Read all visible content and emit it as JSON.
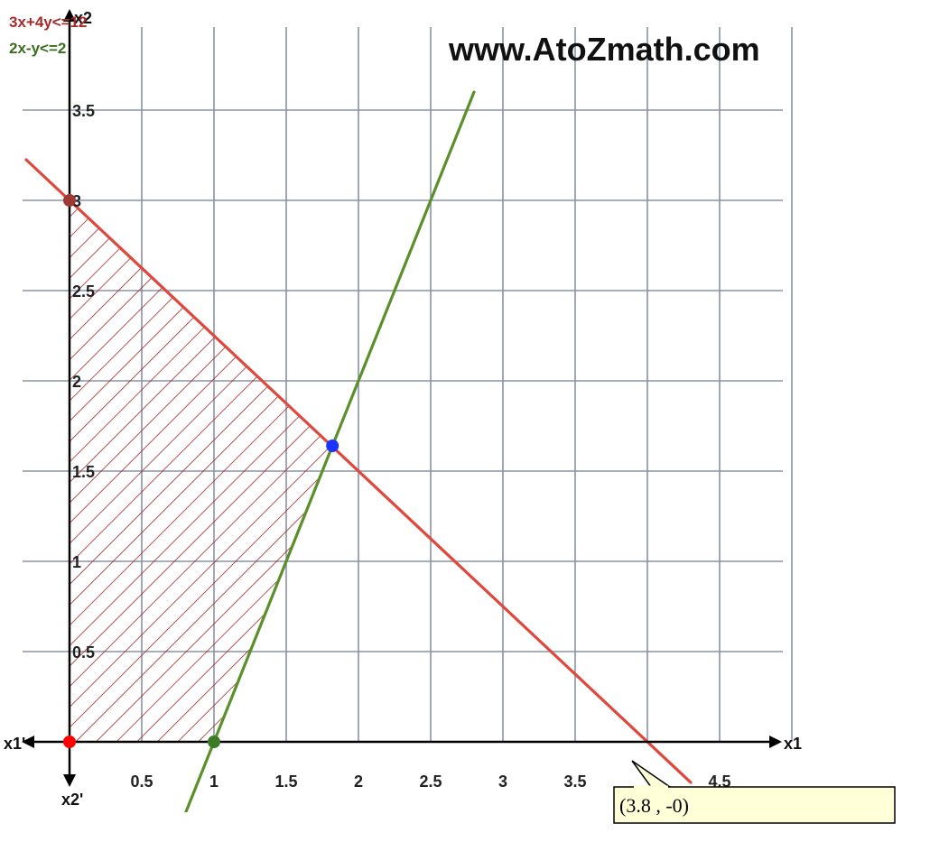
{
  "watermark": "www.AtoZmath.com",
  "legend": [
    {
      "label": "3x+4y<=12",
      "color": "#a52a2a"
    },
    {
      "label": "2x-y<=2",
      "color": "#3c6e1e"
    }
  ],
  "axis_names": {
    "x_right": "x1",
    "x_left": "x1'",
    "y_bottom": "x2'",
    "y_top": "x2"
  },
  "tooltip": {
    "text": "(3.8 , -0)"
  },
  "colors": {
    "grid": "#8a93a6",
    "constraint1": "#e0483e",
    "constraint2": "#5a8f2a",
    "shade": "#a0282a",
    "axis": "#000000"
  },
  "chart_data": {
    "type": "line",
    "xlim": [
      0,
      4.5
    ],
    "ylim": [
      0,
      3.5
    ],
    "x_ticks": [
      "0.5",
      "1",
      "1.5",
      "2",
      "2.5",
      "3",
      "3.5",
      "4.5"
    ],
    "y_ticks": [
      "0.5",
      "1",
      "1.5",
      "2",
      "2.5",
      "3",
      "3.5"
    ],
    "grid": true,
    "series": [
      {
        "name": "3x+4y<=12",
        "points": [
          [
            -0.3,
            3.225
          ],
          [
            4.3,
            -0.225
          ]
        ]
      },
      {
        "name": "2x-y<=2",
        "points": [
          [
            0.8,
            -0.4
          ],
          [
            2.8,
            3.6
          ]
        ]
      }
    ],
    "feasible_region": [
      [
        0,
        0
      ],
      [
        1,
        0
      ],
      [
        1.82,
        1.64
      ],
      [
        0,
        3
      ]
    ],
    "points": [
      {
        "x": 0,
        "y": 3,
        "color": "#9e3a36"
      },
      {
        "x": 0,
        "y": 0,
        "color": "#ff0000"
      },
      {
        "x": 1,
        "y": 0,
        "color": "#3c7a28"
      },
      {
        "x": 1.82,
        "y": 1.64,
        "color": "#1a35ff"
      }
    ],
    "tooltip_point": {
      "x": 3.8,
      "y": 0
    }
  }
}
